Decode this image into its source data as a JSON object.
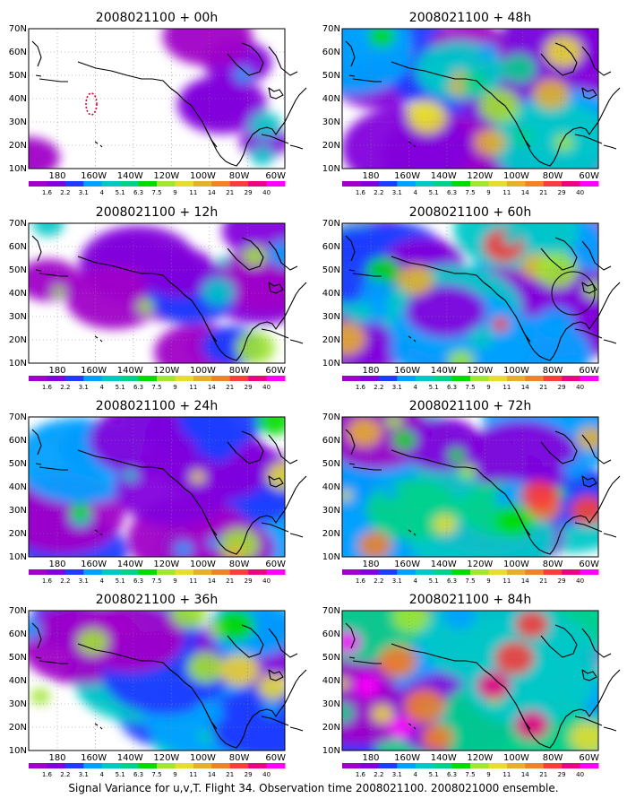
{
  "figure": {
    "caption": "Signal Variance for u,v,T. Flight 34. Observation time 2008021100. 2008021000 ensemble."
  },
  "colorbar": {
    "labels": [
      "1.6",
      "2.2",
      "3.1",
      "4",
      "5.1",
      "6.3",
      "7.5",
      "9",
      "11",
      "14",
      "21",
      "29",
      "40"
    ],
    "colors": [
      "#a000c8",
      "#8200dc",
      "#1e3cff",
      "#00a0ff",
      "#00c8c8",
      "#00d28c",
      "#00dc00",
      "#a0e632",
      "#e6dc32",
      "#e6af2d",
      "#f08228",
      "#fa3c3c",
      "#f00082",
      "#ff00ff"
    ]
  },
  "axes": {
    "y_labels": [
      "70N",
      "60N",
      "50N",
      "40N",
      "30N",
      "20N",
      "10N"
    ],
    "x_labels": [
      "180",
      "160W",
      "140W",
      "120W",
      "100W",
      "80W",
      "60W"
    ],
    "lon_range": [
      -190,
      -60
    ],
    "lat_range": [
      10,
      70
    ]
  },
  "panels": [
    {
      "title": "2008021100 + 00h",
      "lead_hours": 0,
      "level": 0.0
    },
    {
      "title": "2008021100 + 12h",
      "lead_hours": 12,
      "level": 0.25
    },
    {
      "title": "2008021100 + 24h",
      "lead_hours": 24,
      "level": 0.45
    },
    {
      "title": "2008021100 + 36h",
      "lead_hours": 36,
      "level": 0.55
    },
    {
      "title": "2008021100 + 48h",
      "lead_hours": 48,
      "level": 0.65
    },
    {
      "title": "2008021100 + 60h",
      "lead_hours": 60,
      "level": 0.75
    },
    {
      "title": "2008021100 + 72h",
      "lead_hours": 72,
      "level": 0.85
    },
    {
      "title": "2008021100 + 84h",
      "lead_hours": 84,
      "level": 1.0
    }
  ]
}
